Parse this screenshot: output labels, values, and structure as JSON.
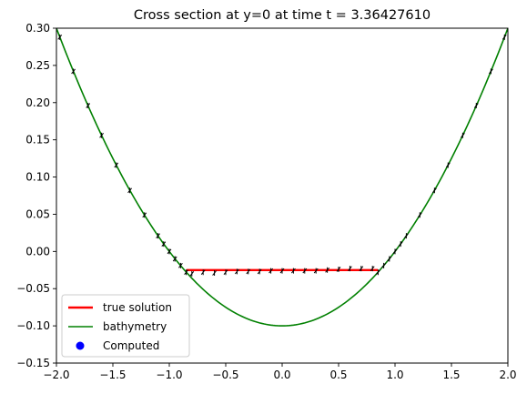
{
  "chart_data": {
    "type": "line",
    "title": "Cross section at y=0 at time t =     3.36427610",
    "xlabel": "",
    "ylabel": "",
    "xlim": [
      -2.0,
      2.0
    ],
    "ylim": [
      -0.15,
      0.3
    ],
    "x_ticks": [
      "−2.0",
      "−1.5",
      "−1.0",
      "−0.5",
      "0.0",
      "0.5",
      "1.0",
      "1.5",
      "2.0"
    ],
    "y_ticks": [
      "−0.15",
      "−0.10",
      "−0.05",
      "0.00",
      "0.05",
      "0.10",
      "0.15",
      "0.20",
      "0.25",
      "0.30"
    ],
    "grid": false,
    "legend_position": "lower-left",
    "series": [
      {
        "name": "true solution",
        "kind": "line",
        "color": "#ff0000",
        "x": [
          -0.8485,
          0.8485
        ],
        "y": [
          -0.025,
          -0.025
        ]
      },
      {
        "name": "bathymetry",
        "kind": "curve",
        "color": "#008000",
        "formula": "y = 0.1*x^2 - 0.1",
        "x_range": [
          -2.0,
          2.0
        ]
      },
      {
        "name": "Computed",
        "kind": "points",
        "color": "#0000ff",
        "marker_color_drawn": "#000000",
        "x": [
          -1.97,
          -1.85,
          -1.72,
          -1.6,
          -1.47,
          -1.35,
          -1.22,
          -1.1,
          -1.05,
          -1.0,
          -0.95,
          -0.9,
          -0.85,
          -0.8,
          -0.7,
          -0.6,
          -0.5,
          -0.4,
          -0.3,
          -0.2,
          -0.1,
          0.0,
          0.1,
          0.2,
          0.3,
          0.4,
          0.5,
          0.6,
          0.7,
          0.8,
          0.85,
          0.9,
          0.95,
          1.0,
          1.05,
          1.1,
          1.22,
          1.35,
          1.47,
          1.6,
          1.72,
          1.85,
          1.97
        ],
        "y": [
          0.288,
          0.242,
          0.196,
          0.156,
          0.116,
          0.082,
          0.049,
          0.021,
          0.01,
          0.0,
          -0.01,
          -0.019,
          -0.028,
          -0.03,
          -0.028,
          -0.029,
          -0.028,
          -0.027,
          -0.027,
          -0.027,
          -0.026,
          -0.026,
          -0.026,
          -0.026,
          -0.026,
          -0.025,
          -0.024,
          -0.023,
          -0.023,
          -0.023,
          -0.028,
          -0.019,
          -0.01,
          0.0,
          0.01,
          0.021,
          0.049,
          0.082,
          0.116,
          0.156,
          0.196,
          0.242,
          0.288
        ]
      }
    ]
  }
}
